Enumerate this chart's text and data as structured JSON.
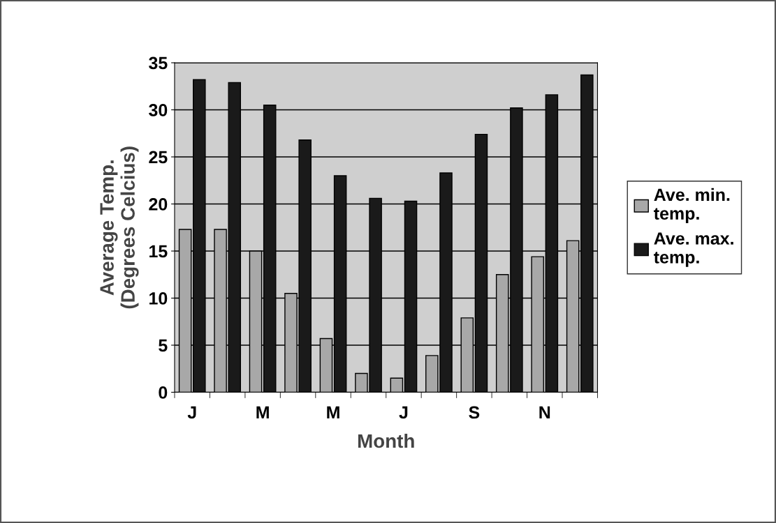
{
  "chart_data": {
    "type": "bar",
    "xlabel": "Month",
    "ylabel": "Average Temp.\n(Degrees Celcius)",
    "categories": [
      "J",
      null,
      "M",
      null,
      "M",
      null,
      "J",
      null,
      "S",
      null,
      "N",
      null
    ],
    "series": [
      {
        "name": "Ave. min.\ntemp.",
        "color": "#a8a8a8",
        "values": [
          17.3,
          17.3,
          15.0,
          10.5,
          5.7,
          2.0,
          1.5,
          3.9,
          7.9,
          12.5,
          14.4,
          16.1
        ]
      },
      {
        "name": "Ave. max.\ntemp.",
        "color": "#1a1a1a",
        "values": [
          33.2,
          32.9,
          30.5,
          26.8,
          23.0,
          20.6,
          20.3,
          23.3,
          27.4,
          30.2,
          31.6,
          33.7
        ]
      }
    ],
    "ylim": [
      0,
      35
    ],
    "yticks": [
      0,
      5,
      10,
      15,
      20,
      25,
      30,
      35
    ],
    "grid": "y",
    "legend": "right"
  }
}
